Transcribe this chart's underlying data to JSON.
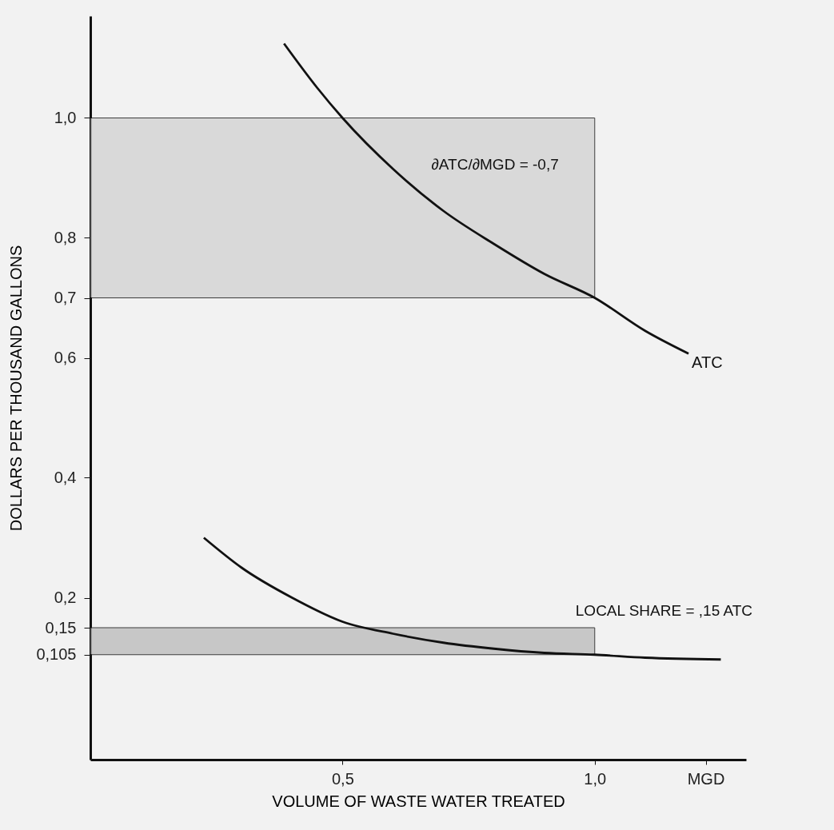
{
  "chart_data": {
    "type": "line",
    "xlabel": "VOLUME OF WASTE WATER TREATED",
    "ylabel": "DOLLARS PER THOUSAND GALLONS",
    "xlim": [
      0,
      1.3
    ],
    "ylim": [
      -0.07,
      1.17
    ],
    "xticks": [
      {
        "value": 0.5,
        "label": "0,5"
      },
      {
        "value": 1.0,
        "label": "1,0"
      },
      {
        "value": 1.22,
        "label": "MGD"
      }
    ],
    "yticks": [
      {
        "value": 0.105,
        "label": "0,105"
      },
      {
        "value": 0.15,
        "label": "0,15"
      },
      {
        "value": 0.2,
        "label": "0,2"
      },
      {
        "value": 0.4,
        "label": "0,4"
      },
      {
        "value": 0.6,
        "label": "0,6"
      },
      {
        "value": 0.7,
        "label": "0,7"
      },
      {
        "value": 0.8,
        "label": "0,8"
      },
      {
        "value": 1.0,
        "label": "1,0"
      }
    ],
    "series": [
      {
        "name": "ATC",
        "color": "#111111",
        "x": [
          0.384,
          0.45,
          0.5,
          0.6,
          0.7,
          0.8,
          0.9,
          1.0,
          1.1,
          1.186
        ],
        "values": [
          1.124,
          1.05,
          1.0,
          0.915,
          0.845,
          0.79,
          0.74,
          0.7,
          0.645,
          0.607
        ]
      },
      {
        "color": "#111111",
        "x": [
          0.225,
          0.3,
          0.4,
          0.5,
          0.6,
          0.7,
          0.8,
          0.9,
          1.0,
          1.1,
          1.25
        ],
        "values": [
          0.3,
          0.25,
          0.2,
          0.16,
          0.14,
          0.125,
          0.115,
          0.108,
          0.105,
          0.1,
          0.097
        ]
      }
    ],
    "bands": [
      {
        "axis": "y",
        "from": 0.7,
        "to": 1.0,
        "color": "#d4d4d4"
      },
      {
        "axis": "y",
        "from": 0.105,
        "to": 0.15,
        "color": "#bdbdbd"
      }
    ],
    "annotations": [
      "∂ATC/∂MGD = -0,7",
      "LOCAL SHARE = ,15 ATC"
    ],
    "grid": false,
    "marker": "none",
    "line_style": "solid"
  }
}
